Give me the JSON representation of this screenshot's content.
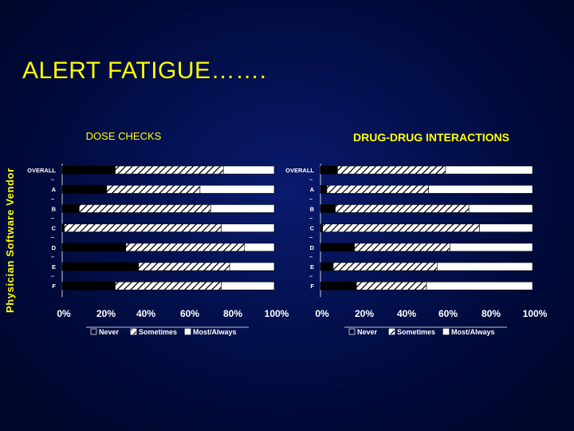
{
  "slide": {
    "title": "ALERT FATIGUE…….",
    "side_label": "Physician Software Vendor"
  },
  "colors": {
    "background": "#000b3d",
    "title": "#ffff00",
    "bar_fill": "#ffffff",
    "bar_dark": "#000000"
  },
  "legend_labels": [
    "Never",
    "Sometimes",
    "Most/Always"
  ],
  "chart_data": [
    {
      "type": "bar",
      "orientation": "horizontal",
      "stacked": true,
      "title": "DOSE CHECKS",
      "categories": [
        "OVERALL",
        "A",
        "B",
        "C",
        "D",
        "E",
        "F"
      ],
      "x_ticks": [
        "0%",
        "20%",
        "40%",
        "60%",
        "80%",
        "100%"
      ],
      "xlim": [
        0,
        100
      ],
      "legend_position": "bottom",
      "series": [
        {
          "name": "Never",
          "values": [
            25,
            21,
            8,
            1,
            30,
            36,
            25
          ]
        },
        {
          "name": "Sometimes",
          "values": [
            51,
            44,
            62,
            74,
            56,
            43,
            50
          ]
        },
        {
          "name": "Most/Always",
          "values": [
            24,
            35,
            30,
            25,
            14,
            21,
            25
          ]
        }
      ]
    },
    {
      "type": "bar",
      "orientation": "horizontal",
      "stacked": true,
      "title": "DRUG-DRUG INTERACTIONS",
      "categories": [
        "OVERALL",
        "A",
        "B",
        "C",
        "D",
        "E",
        "F"
      ],
      "x_ticks": [
        "0%",
        "20%",
        "40%",
        "60%",
        "80%",
        "100%"
      ],
      "xlim": [
        0,
        100
      ],
      "legend_position": "bottom",
      "series": [
        {
          "name": "Never",
          "values": [
            8,
            3,
            7,
            1,
            16,
            6,
            17
          ]
        },
        {
          "name": "Sometimes",
          "values": [
            51,
            48,
            63,
            74,
            45,
            49,
            33
          ]
        },
        {
          "name": "Most/Always",
          "values": [
            41,
            49,
            30,
            25,
            39,
            45,
            50
          ]
        }
      ]
    }
  ]
}
